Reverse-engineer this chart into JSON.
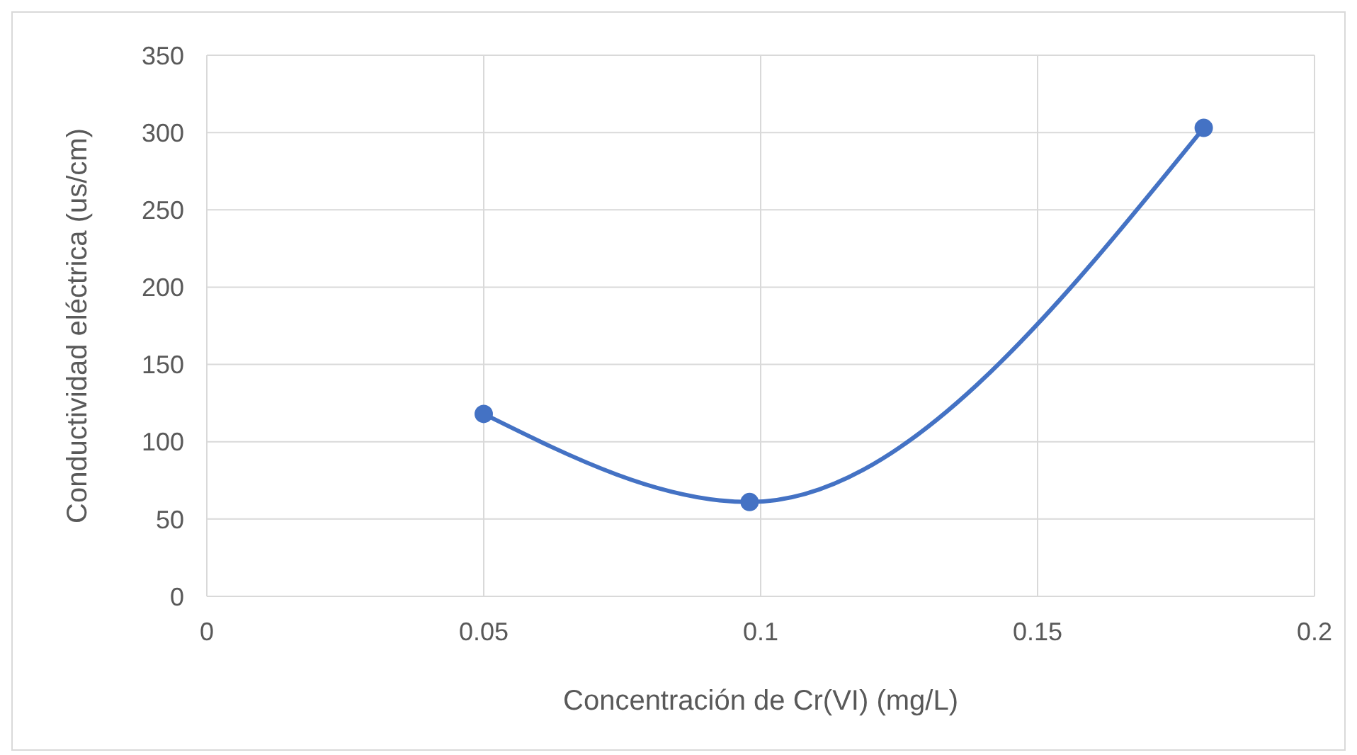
{
  "chart_data": {
    "type": "line",
    "xlabel": "Concentración de Cr(VI) (mg/L)",
    "ylabel": "Conductividad eléctrica (us/cm)",
    "x": [
      0.05,
      0.098,
      0.18
    ],
    "series": [
      {
        "color": "#4472c4",
        "values": [
          118,
          61,
          303
        ]
      }
    ],
    "xlim": [
      0,
      0.2
    ],
    "xticks": [
      0,
      0.05,
      0.1,
      0.15,
      0.2
    ],
    "ylim": [
      0,
      350
    ],
    "yticks": [
      0,
      50,
      100,
      150,
      200,
      250,
      300,
      350
    ],
    "grid": true,
    "marker": "circle",
    "line_style": "solid"
  }
}
